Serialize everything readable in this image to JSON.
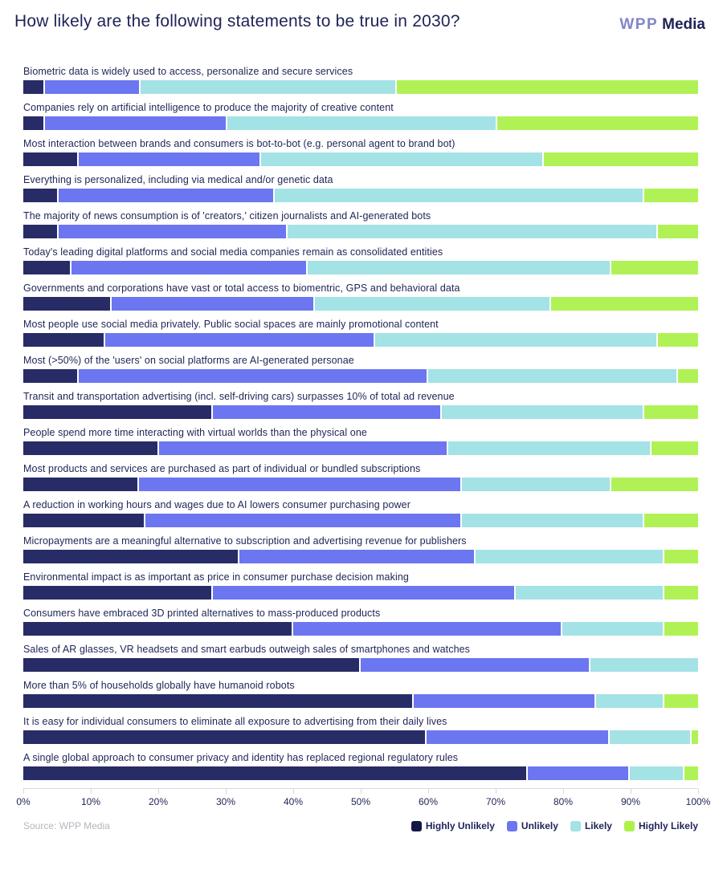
{
  "header": {
    "title": "How likely are the following statements to be true in 2030?",
    "logo": {
      "wpp": "WPP",
      "media": "Media"
    }
  },
  "colors": {
    "text": "#1e2356",
    "logo_wpp": "#8285c9",
    "logo_media": "#1e2356",
    "axis_line": "#d8d8df",
    "source_text": "#b6b6be",
    "series": [
      "#272b66",
      "#6b76f0",
      "#a3e2e5",
      "#b0f255"
    ]
  },
  "source": "Source: WPP Media",
  "legend": [
    {
      "label": "Highly Unlikely",
      "color": "#141847"
    },
    {
      "label": "Unlikely",
      "color": "#6b76f0"
    },
    {
      "label": "Likely",
      "color": "#a3e2e5"
    },
    {
      "label": "Highly Likely",
      "color": "#aef14a"
    }
  ],
  "axis": {
    "tick_labels": [
      "0%",
      "10%",
      "20%",
      "30%",
      "40%",
      "50%",
      "60%",
      "70%",
      "80%",
      "90%",
      "100%"
    ],
    "tick_positions": [
      0,
      10,
      20,
      30,
      40,
      50,
      60,
      70,
      80,
      90,
      100
    ]
  },
  "chart_data": {
    "type": "bar",
    "orientation": "horizontal",
    "stacked": true,
    "unit": "percent",
    "title": "How likely are the following statements to be true in 2030?",
    "xlim": [
      0,
      100
    ],
    "x_ticks": [
      0,
      10,
      20,
      30,
      40,
      50,
      60,
      70,
      80,
      90,
      100
    ],
    "grid": false,
    "legend_position": "bottom-right",
    "series_names": [
      "Highly Unlikely",
      "Unlikely",
      "Likely",
      "Highly Likely"
    ],
    "series_keys": [
      "highly-unlikely",
      "unlikely",
      "likely",
      "highly-likely"
    ],
    "rows": [
      {
        "label": "Biometric data is widely used to access, personalize and secure services",
        "values": [
          3,
          14,
          38,
          45
        ]
      },
      {
        "label": "Companies rely on artificial intelligence to produce the majority of creative content",
        "values": [
          3,
          27,
          40,
          30
        ]
      },
      {
        "label": "Most interaction between brands and consumers is bot-to-bot (e.g. personal agent to brand bot)",
        "values": [
          8,
          27,
          42,
          23
        ]
      },
      {
        "label": "Everything is personalized, including via medical and/or genetic data",
        "values": [
          5,
          32,
          55,
          8
        ]
      },
      {
        "label": "The majority of news consumption is of 'creators,' citizen journalists and AI-generated bots",
        "values": [
          5,
          34,
          55,
          6
        ]
      },
      {
        "label": "Today's leading digital platforms and social media companies remain as consolidated entities",
        "values": [
          7,
          35,
          45,
          13
        ]
      },
      {
        "label": "Governments and corporations have vast or total access to biomentric, GPS and behavioral data",
        "values": [
          13,
          30,
          35,
          22
        ]
      },
      {
        "label": "Most people use social media privately. Public social spaces are mainly promotional content",
        "values": [
          12,
          40,
          42,
          6
        ]
      },
      {
        "label": "Most (>50%) of the 'users' on social platforms are AI-generated personae",
        "values": [
          8,
          52,
          37,
          3
        ]
      },
      {
        "label": "Transit and transportation advertising (incl. self-driving cars) surpasses 10% of total ad revenue",
        "values": [
          28,
          34,
          30,
          8
        ]
      },
      {
        "label": "People spend more time interacting with virtual worlds than the physical one",
        "values": [
          20,
          43,
          30,
          7
        ]
      },
      {
        "label": "Most products and services are purchased as part of individual or bundled subscriptions",
        "values": [
          17,
          48,
          22,
          13
        ]
      },
      {
        "label": "A reduction in working hours and wages due to AI lowers consumer purchasing power",
        "values": [
          18,
          47,
          27,
          8
        ]
      },
      {
        "label": "Micropayments are a meaningful alternative to subscription and advertising revenue for publishers",
        "values": [
          32,
          35,
          28,
          5
        ]
      },
      {
        "label": "Environmental impact is as important as price in consumer purchase decision making",
        "values": [
          28,
          45,
          22,
          5
        ]
      },
      {
        "label": "Consumers have embraced 3D printed alternatives to mass-produced products",
        "values": [
          40,
          40,
          15,
          5
        ]
      },
      {
        "label": "Sales of AR glasses, VR headsets and smart earbuds outweigh sales of smartphones and watches",
        "values": [
          50,
          34,
          16,
          0
        ]
      },
      {
        "label": "More than 5% of households globally have humanoid robots",
        "values": [
          58,
          27,
          10,
          5
        ]
      },
      {
        "label": "It is easy for individual consumers to eliminate all exposure to advertising from their daily lives",
        "values": [
          60,
          27,
          12,
          1
        ]
      },
      {
        "label": "A single global approach to consumer privacy and identity has replaced regional regulatory rules",
        "values": [
          75,
          15,
          8,
          2
        ]
      }
    ]
  }
}
